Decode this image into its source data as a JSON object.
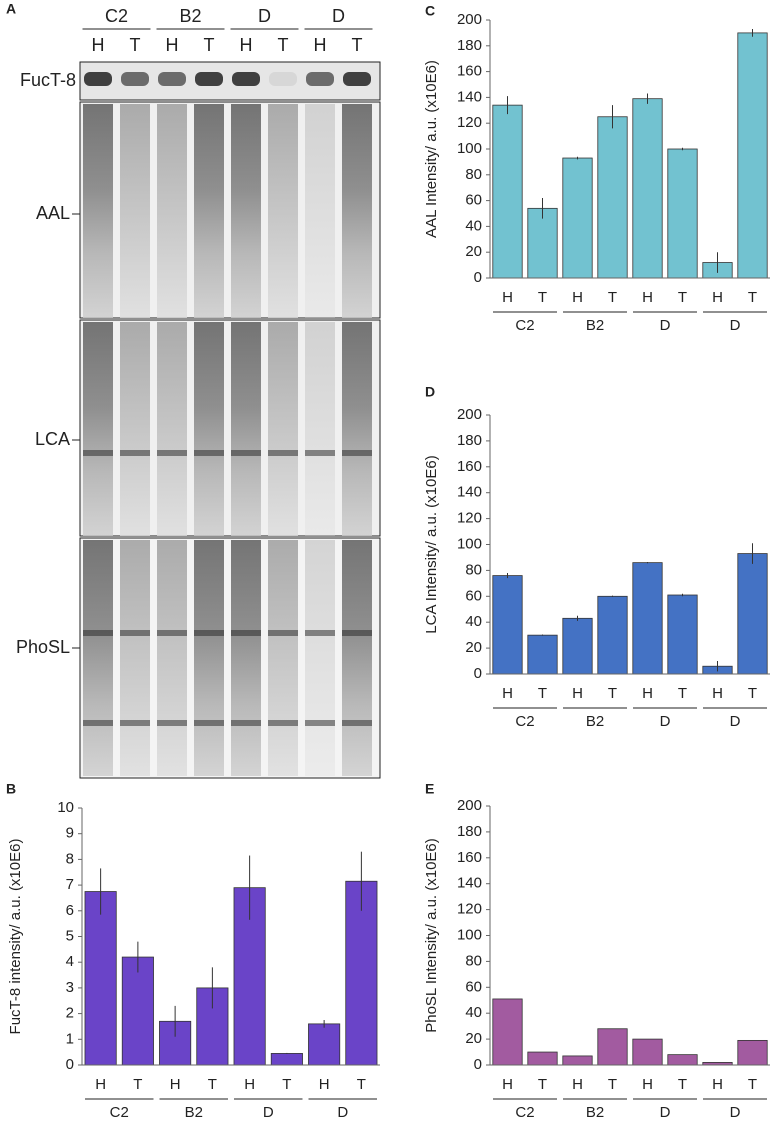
{
  "blot": {
    "panel": "A",
    "groups": [
      "C2",
      "B2",
      "D",
      "D"
    ],
    "lanes": [
      "H",
      "T",
      "H",
      "T",
      "H",
      "T",
      "H",
      "T"
    ],
    "rows": [
      "FucT-8",
      "AAL",
      "LCA",
      "PhoSL"
    ]
  },
  "chart_data": [
    {
      "type": "bar",
      "panel": "C",
      "ylabel": "AAL Intensity/ a.u. (x10E6)",
      "categories": [
        "H",
        "T",
        "H",
        "T",
        "H",
        "T",
        "H",
        "T"
      ],
      "groups": [
        "C2",
        "B2",
        "D",
        "D"
      ],
      "values": [
        134,
        54,
        93,
        125,
        139,
        100,
        12,
        190
      ],
      "errors": [
        7,
        8,
        1,
        9,
        4,
        1,
        8,
        3
      ],
      "color": "#72c2d0",
      "ylim": [
        0,
        200
      ],
      "yticks": [
        0,
        20,
        40,
        60,
        80,
        100,
        120,
        140,
        160,
        180,
        200
      ]
    },
    {
      "type": "bar",
      "panel": "D",
      "ylabel": "LCA Intensity/ a.u. (x10E6)",
      "categories": [
        "H",
        "T",
        "H",
        "T",
        "H",
        "T",
        "H",
        "T"
      ],
      "groups": [
        "C2",
        "B2",
        "D",
        "D"
      ],
      "values": [
        76,
        30,
        43,
        60,
        86,
        61,
        6,
        93
      ],
      "errors": [
        2,
        0.5,
        2,
        0.5,
        0.5,
        1,
        4,
        8
      ],
      "color": "#4472c4",
      "ylim": [
        0,
        200
      ],
      "yticks": [
        0,
        20,
        40,
        60,
        80,
        100,
        120,
        140,
        160,
        180,
        200
      ]
    },
    {
      "type": "bar",
      "panel": "E",
      "ylabel": "PhoSL Intensity/ a.u. (x10E6)",
      "categories": [
        "H",
        "T",
        "H",
        "T",
        "H",
        "T",
        "H",
        "T"
      ],
      "groups": [
        "C2",
        "B2",
        "D",
        "D"
      ],
      "values": [
        51,
        10,
        7,
        28,
        20,
        8,
        2,
        19
      ],
      "color": "#a25ba0",
      "ylim": [
        0,
        200
      ],
      "yticks": [
        0,
        20,
        40,
        60,
        80,
        100,
        120,
        140,
        160,
        180,
        200
      ]
    },
    {
      "type": "bar",
      "panel": "B",
      "ylabel": "FucT-8 intensity/ a.u. (x10E6)",
      "categories": [
        "H",
        "T",
        "H",
        "T",
        "H",
        "T",
        "H",
        "T"
      ],
      "groups": [
        "C2",
        "B2",
        "D",
        "D"
      ],
      "values": [
        6.75,
        4.2,
        1.7,
        3.0,
        6.9,
        0.45,
        1.6,
        7.15
      ],
      "errors": [
        0.9,
        0.6,
        0.6,
        0.8,
        1.25,
        0.02,
        0.15,
        1.15
      ],
      "color": "#6a44c8",
      "ylim": [
        0,
        10
      ],
      "yticks": [
        0,
        1,
        2,
        3,
        4,
        5,
        6,
        7,
        8,
        9,
        10
      ]
    }
  ]
}
